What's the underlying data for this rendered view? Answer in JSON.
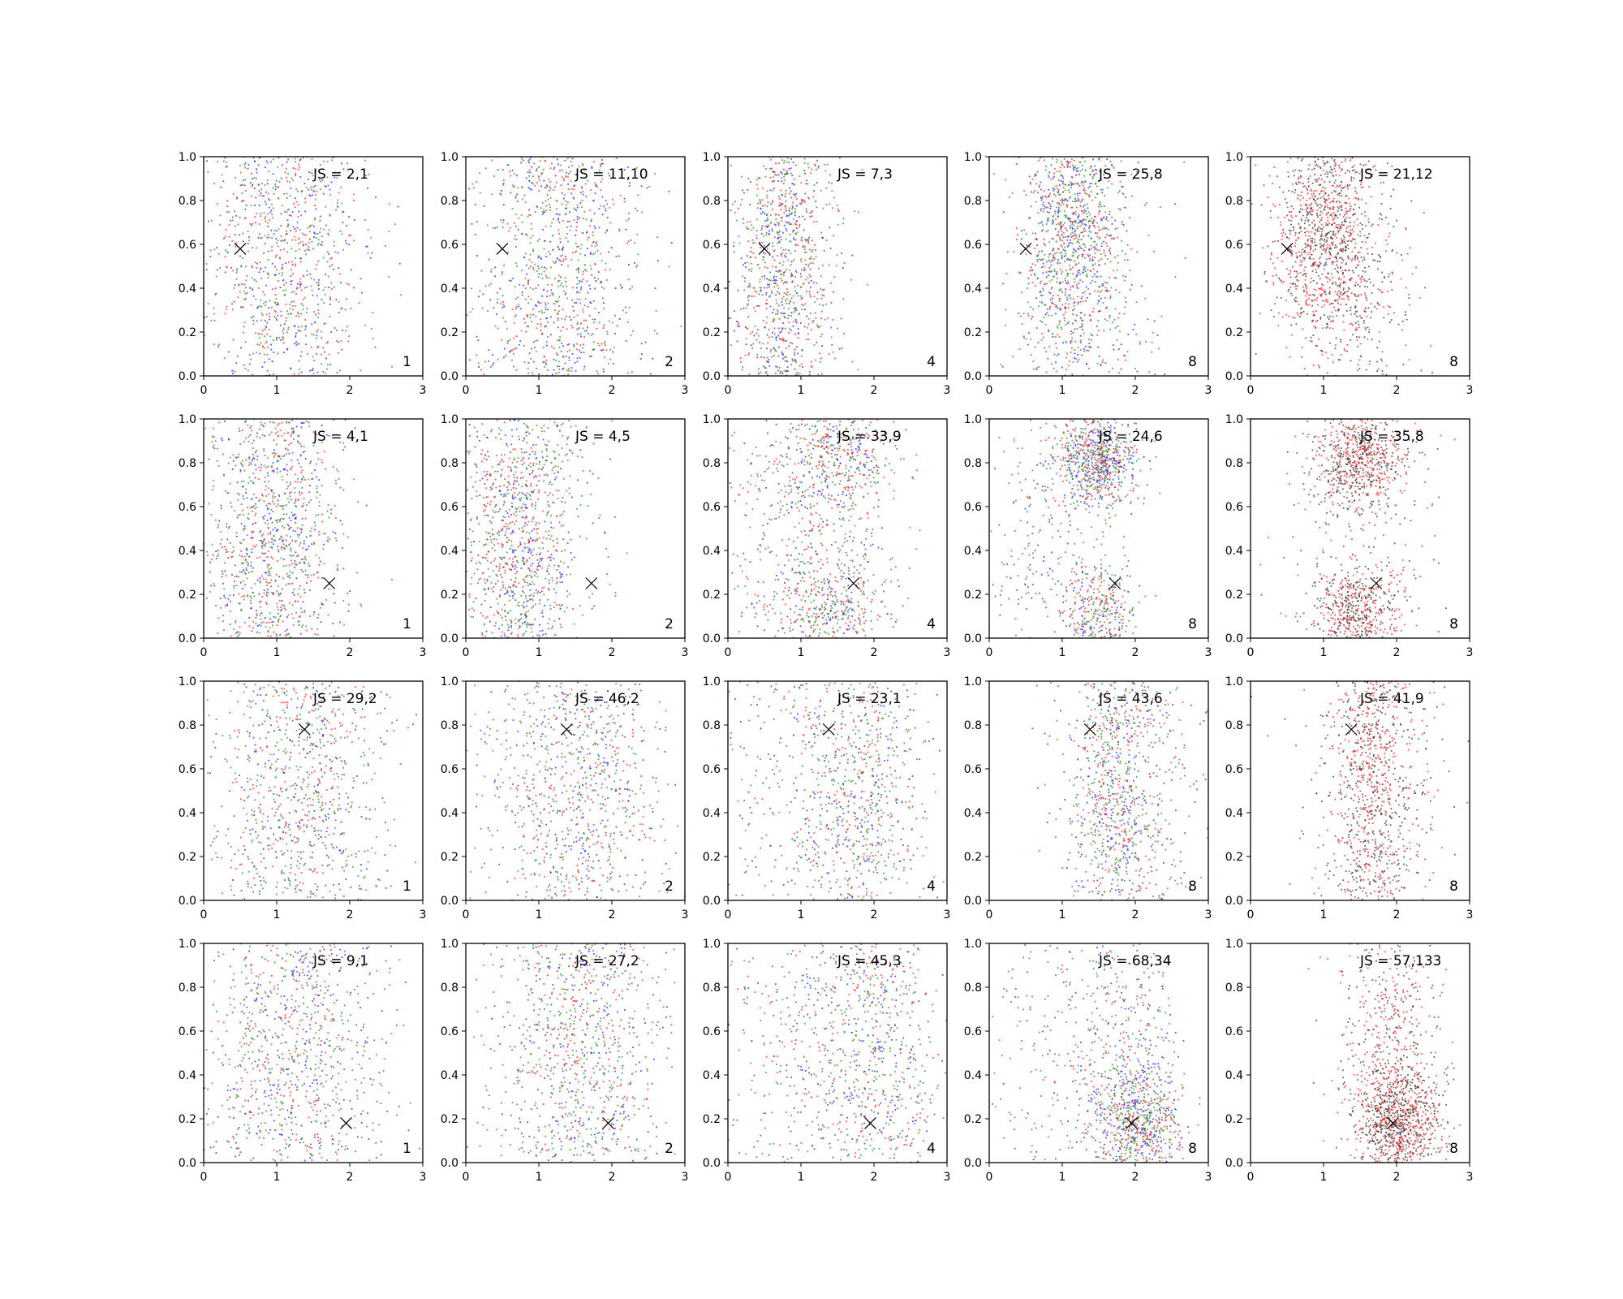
{
  "chart_data": {
    "type": "scatter",
    "xlim": [
      0,
      3
    ],
    "ylim": [
      0,
      1
    ],
    "x_ticks": [
      "0",
      "1",
      "2",
      "3"
    ],
    "y_ticks": [
      "0.0",
      "0.2",
      "0.4",
      "0.6",
      "0.8",
      "1.0"
    ],
    "series_colors": [
      "#1f1fff",
      "#ff1f1f",
      "#1f8f1f",
      "#333333"
    ],
    "grid": false,
    "legend": "none",
    "panels": [
      {
        "label": "JS = 2,1",
        "corner": "1",
        "marker": [
          0.5,
          0.58
        ],
        "palette": [
          "#1f1fff",
          "#ff1f1f",
          "#1f8f1f"
        ],
        "clusters": [
          [
            0.9,
            0.5,
            0.55,
            0.6,
            1
          ],
          [
            1.3,
            0.5,
            0.55,
            0.6,
            1
          ],
          [
            1.1,
            0.5,
            0.6,
            0.6,
            1
          ]
        ]
      },
      {
        "label": "JS = 11,10",
        "corner": "2",
        "marker": [
          0.5,
          0.58
        ],
        "palette": [
          "#1f1fff",
          "#ff1f1f",
          "#1f8f1f"
        ],
        "clusters": [
          [
            1.3,
            0.9,
            0.55,
            0.3,
            1
          ],
          [
            1.4,
            0.15,
            0.5,
            0.3,
            1
          ],
          [
            1.0,
            0.5,
            0.6,
            0.6,
            1
          ]
        ]
      },
      {
        "label": "JS = 7,3",
        "corner": "4",
        "marker": [
          0.5,
          0.58
        ],
        "palette": [
          "#1f1fff",
          "#ff1f1f",
          "#1f8f1f"
        ],
        "clusters": [
          [
            0.7,
            0.5,
            0.4,
            0.6,
            1
          ],
          [
            0.8,
            0.5,
            0.35,
            0.6,
            1
          ],
          [
            0.8,
            0.5,
            0.35,
            0.6,
            1
          ]
        ]
      },
      {
        "label": "JS = 25,8",
        "corner": "8",
        "marker": [
          0.5,
          0.58
        ],
        "palette": [
          "#1f1fff",
          "#ff1f1f",
          "#1f8f1f"
        ],
        "clusters": [
          [
            1.1,
            0.45,
            0.4,
            0.5,
            1
          ],
          [
            1.1,
            0.7,
            0.3,
            0.25,
            1.6
          ],
          [
            1.5,
            0.4,
            0.5,
            0.5,
            0.8
          ]
        ]
      },
      {
        "label": "JS = 21,12",
        "corner": "8",
        "marker": [
          0.5,
          0.58
        ],
        "palette": [
          "#ff1f1f",
          "#333333"
        ],
        "clusters": [
          [
            1.0,
            0.65,
            0.35,
            0.28,
            1.8
          ],
          [
            1.5,
            0.3,
            0.4,
            0.4,
            0.5
          ]
        ]
      },
      {
        "label": "JS = 4,1",
        "corner": "1",
        "marker": [
          1.72,
          0.25
        ],
        "palette": [
          "#1f1fff",
          "#ff1f1f",
          "#1f8f1f"
        ],
        "clusters": [
          [
            0.9,
            0.45,
            0.5,
            0.5,
            1
          ],
          [
            1.0,
            0.5,
            0.5,
            0.5,
            1
          ],
          [
            0.9,
            0.5,
            0.45,
            0.5,
            1
          ]
        ]
      },
      {
        "label": "JS = 4,5",
        "corner": "2",
        "marker": [
          1.72,
          0.25
        ],
        "palette": [
          "#1f1fff",
          "#ff1f1f",
          "#1f8f1f"
        ],
        "clusters": [
          [
            0.7,
            0.4,
            0.4,
            0.5,
            1
          ],
          [
            0.9,
            0.4,
            0.45,
            0.5,
            1
          ],
          [
            0.7,
            0.6,
            0.4,
            0.5,
            1
          ]
        ]
      },
      {
        "label": "JS = 33,9",
        "corner": "4",
        "marker": [
          1.72,
          0.25
        ],
        "palette": [
          "#1f1fff",
          "#ff1f1f",
          "#1f8f1f"
        ],
        "clusters": [
          [
            1.2,
            0.45,
            0.55,
            0.5,
            1
          ],
          [
            1.6,
            0.82,
            0.35,
            0.14,
            0.7
          ],
          [
            1.5,
            0.12,
            0.35,
            0.14,
            0.7
          ],
          [
            0.8,
            0.5,
            0.5,
            0.5,
            0.6
          ]
        ]
      },
      {
        "label": "JS = 24,6",
        "corner": "8",
        "marker": [
          1.72,
          0.25
        ],
        "palette": [
          "#1f1fff",
          "#ff1f1f",
          "#1f8f1f"
        ],
        "clusters": [
          [
            1.5,
            0.82,
            0.3,
            0.12,
            0.9
          ],
          [
            1.45,
            0.82,
            0.25,
            0.11,
            1
          ],
          [
            1.5,
            0.12,
            0.25,
            0.12,
            0.8
          ],
          [
            0.8,
            0.5,
            0.5,
            0.5,
            0.9
          ]
        ]
      },
      {
        "label": "JS = 35,8",
        "corner": "8",
        "marker": [
          1.72,
          0.25
        ],
        "palette": [
          "#ff1f1f",
          "#333333"
        ],
        "clusters": [
          [
            1.5,
            0.82,
            0.3,
            0.12,
            1.6
          ],
          [
            1.45,
            0.12,
            0.3,
            0.1,
            1.2
          ],
          [
            1.5,
            0.5,
            0.6,
            0.5,
            0.5
          ]
        ]
      },
      {
        "label": "JS = 29,2",
        "corner": "1",
        "marker": [
          1.38,
          0.78
        ],
        "palette": [
          "#1f1fff",
          "#ff1f1f",
          "#1f8f1f"
        ],
        "clusters": [
          [
            1.3,
            0.5,
            0.6,
            0.6,
            1
          ],
          [
            1.4,
            0.5,
            0.6,
            0.6,
            1
          ],
          [
            1.2,
            0.5,
            0.6,
            0.6,
            1
          ]
        ]
      },
      {
        "label": "JS = 46,2",
        "corner": "2",
        "marker": [
          1.38,
          0.78
        ],
        "palette": [
          "#1f1fff",
          "#ff1f1f",
          "#1f8f1f"
        ],
        "clusters": [
          [
            1.5,
            0.5,
            0.55,
            0.6,
            1
          ],
          [
            1.9,
            0.5,
            0.5,
            0.6,
            1
          ],
          [
            1.0,
            0.5,
            0.55,
            0.6,
            1
          ]
        ]
      },
      {
        "label": "JS = 23,1",
        "corner": "4",
        "marker": [
          1.38,
          0.78
        ],
        "palette": [
          "#1f1fff",
          "#ff1f1f",
          "#1f8f1f"
        ],
        "clusters": [
          [
            1.9,
            0.5,
            0.45,
            0.6,
            1
          ],
          [
            1.9,
            0.5,
            0.4,
            0.6,
            1
          ],
          [
            1.0,
            0.5,
            0.6,
            0.6,
            1
          ]
        ]
      },
      {
        "label": "JS = 43,6",
        "corner": "8",
        "marker": [
          1.38,
          0.78
        ],
        "palette": [
          "#1f1fff",
          "#ff1f1f",
          "#1f8f1f"
        ],
        "clusters": [
          [
            1.8,
            0.5,
            0.4,
            0.6,
            1
          ],
          [
            1.7,
            0.55,
            0.25,
            0.55,
            1.2
          ],
          [
            2.0,
            0.5,
            0.55,
            0.6,
            0.8
          ]
        ]
      },
      {
        "label": "JS = 41,9",
        "corner": "8",
        "marker": [
          1.38,
          0.78
        ],
        "palette": [
          "#ff1f1f",
          "#333333"
        ],
        "clusters": [
          [
            1.7,
            0.55,
            0.3,
            0.55,
            1.8
          ],
          [
            1.7,
            0.5,
            0.6,
            0.6,
            0.5
          ]
        ]
      },
      {
        "label": "JS = 9,1",
        "corner": "1",
        "marker": [
          1.95,
          0.18
        ],
        "palette": [
          "#1f1fff",
          "#ff1f1f",
          "#1f8f1f"
        ],
        "clusters": [
          [
            1.3,
            0.5,
            0.6,
            0.6,
            1
          ],
          [
            1.3,
            0.5,
            0.6,
            0.6,
            1
          ],
          [
            1.1,
            0.5,
            0.6,
            0.6,
            1
          ]
        ]
      },
      {
        "label": "JS = 27,2",
        "corner": "2",
        "marker": [
          1.95,
          0.18
        ],
        "palette": [
          "#1f1fff",
          "#ff1f1f",
          "#1f8f1f"
        ],
        "clusters": [
          [
            1.6,
            0.5,
            0.6,
            0.6,
            1
          ],
          [
            1.7,
            0.5,
            0.55,
            0.6,
            1
          ],
          [
            1.3,
            0.5,
            0.6,
            0.6,
            1
          ]
        ]
      },
      {
        "label": "JS = 45,3",
        "corner": "4",
        "marker": [
          1.95,
          0.18
        ],
        "palette": [
          "#1f1fff",
          "#ff1f1f",
          "#1f8f1f"
        ],
        "clusters": [
          [
            2.0,
            0.5,
            0.45,
            0.6,
            1
          ],
          [
            2.1,
            0.5,
            0.4,
            0.6,
            1
          ],
          [
            1.0,
            0.5,
            0.6,
            0.6,
            1
          ]
        ]
      },
      {
        "label": "JS = 68,34",
        "corner": "8",
        "marker": [
          1.95,
          0.18
        ],
        "palette": [
          "#1f1fff",
          "#ff1f1f",
          "#1f8f1f"
        ],
        "clusters": [
          [
            1.9,
            0.4,
            0.4,
            0.35,
            1
          ],
          [
            2.05,
            0.18,
            0.3,
            0.13,
            1.4
          ],
          [
            1.0,
            0.55,
            0.6,
            0.6,
            0.9
          ]
        ]
      },
      {
        "label": "JS = 57,133",
        "corner": "8",
        "marker": [
          1.95,
          0.18
        ],
        "palette": [
          "#ff1f1f",
          "#333333"
        ],
        "clusters": [
          [
            2.0,
            0.18,
            0.3,
            0.14,
            1.7
          ],
          [
            1.9,
            0.6,
            0.35,
            0.35,
            0.9
          ]
        ]
      }
    ]
  }
}
